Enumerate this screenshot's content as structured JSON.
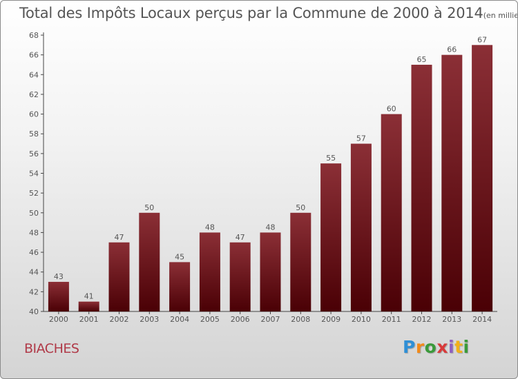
{
  "header": {
    "title": "Total des Impôts Locaux perçus par la Commune de 2000 à 2014",
    "unit": "(en milliers d'€)"
  },
  "footer": {
    "commune": "BIACHES",
    "logo": {
      "p": "P",
      "r": "r",
      "o": "o",
      "x": "x",
      "i": "i",
      "t": "t",
      "i2": "i"
    }
  },
  "colors": {
    "bar_top": "#8b2f36",
    "bar_bottom": "#4a0005",
    "text": "#555555",
    "commune": "#b03a48"
  },
  "chart_data": {
    "type": "bar",
    "categories": [
      "2000",
      "2001",
      "2002",
      "2003",
      "2004",
      "2005",
      "2006",
      "2007",
      "2008",
      "2009",
      "2010",
      "2011",
      "2012",
      "2013",
      "2014"
    ],
    "values": [
      43,
      41,
      47,
      50,
      45,
      48,
      47,
      48,
      50,
      55,
      57,
      60,
      65,
      66,
      67
    ],
    "title": "Total des Impôts Locaux perçus par la Commune de 2000 à 2014",
    "xlabel": "",
    "ylabel": "",
    "ylim": [
      40,
      68
    ],
    "yticks": [
      40,
      42,
      44,
      46,
      48,
      50,
      52,
      54,
      56,
      58,
      60,
      62,
      64,
      66,
      68
    ],
    "grid": false,
    "data_labels": true
  }
}
